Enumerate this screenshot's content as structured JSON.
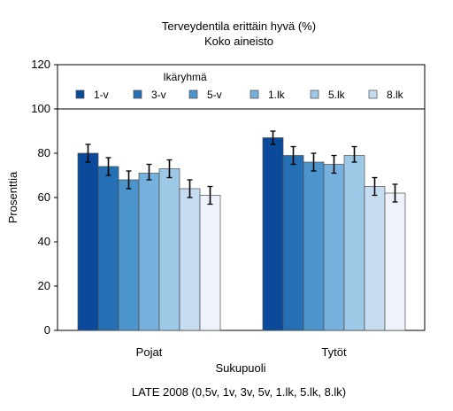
{
  "chart_data": {
    "type": "bar",
    "title": "Terveydentila erittäin hyvä (%)",
    "subtitle": "Koko aineisto",
    "xlabel": "Sukupuoli",
    "ylabel": "Prosenttia",
    "caption": "LATE 2008 (0,5v, 1v, 3v, 5v, 1.lk, 5.lk, 8.lk)",
    "legend_title": "Ikäryhmä",
    "legend_position": "top-inside",
    "categories": [
      "Pojat",
      "Tytöt"
    ],
    "ylim": [
      0,
      120
    ],
    "yticks": [
      0,
      20,
      40,
      60,
      80,
      100,
      120
    ],
    "reference_line": 100,
    "error_bars": true,
    "series": [
      {
        "name": "1-v",
        "color": "#0b4a9a",
        "values": [
          80,
          87
        ],
        "ci": [
          [
            76,
            84
          ],
          [
            84,
            90
          ]
        ]
      },
      {
        "name": "3-v",
        "color": "#2570b4",
        "values": [
          74,
          79
        ],
        "ci": [
          [
            70,
            78
          ],
          [
            75,
            83
          ]
        ]
      },
      {
        "name": "5-v",
        "color": "#4b94cc",
        "values": [
          68,
          76
        ],
        "ci": [
          [
            64,
            72
          ],
          [
            72,
            80
          ]
        ]
      },
      {
        "name": "1.lk",
        "color": "#76b0dc",
        "values": [
          71,
          75
        ],
        "ci": [
          [
            68,
            75
          ],
          [
            71,
            79
          ]
        ]
      },
      {
        "name": "5.lk",
        "color": "#9dc8e6",
        "values": [
          73,
          79
        ],
        "ci": [
          [
            69,
            77
          ],
          [
            76,
            83
          ]
        ]
      },
      {
        "name": "8.lk",
        "color": "#c6ddf1",
        "values": [
          64,
          65
        ],
        "ci": [
          [
            60,
            68
          ],
          [
            61,
            69
          ]
        ]
      },
      {
        "name": "",
        "color": "#eef3fb",
        "values": [
          61,
          62
        ],
        "ci": [
          [
            57,
            65
          ],
          [
            58,
            66
          ]
        ]
      }
    ]
  }
}
